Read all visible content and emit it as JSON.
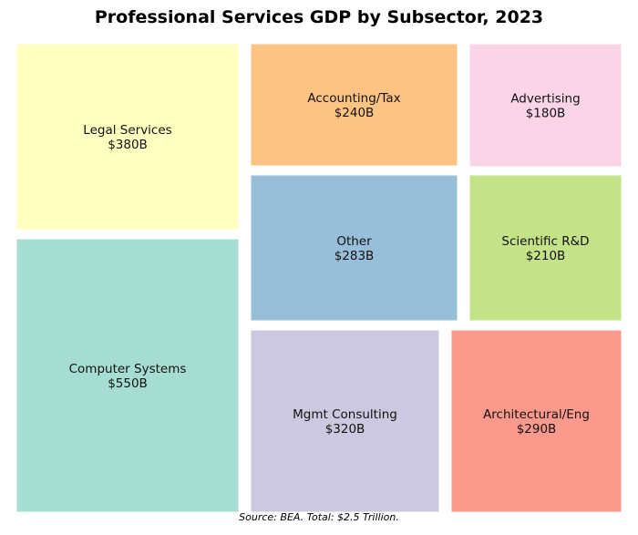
{
  "chart_data": {
    "type": "treemap",
    "title": "Professional Services GDP by Subsector, 2023",
    "source": "Source: BEA. Total: $2.5 Trillion.",
    "unit": "B",
    "items": [
      {
        "label": "Legal Services",
        "value": 380,
        "value_label": "$380B",
        "color": "#FFFFC0"
      },
      {
        "label": "Computer Systems",
        "value": 550,
        "value_label": "$550B",
        "color": "#A6DDD3"
      },
      {
        "label": "Accounting/Tax",
        "value": 240,
        "value_label": "$240B",
        "color": "#FDC382"
      },
      {
        "label": "Advertising",
        "value": 180,
        "value_label": "$180B",
        "color": "#FBD5E7"
      },
      {
        "label": "Other",
        "value": 283,
        "value_label": "$283B",
        "color": "#98BFDA"
      },
      {
        "label": "Scientific R&D",
        "value": 210,
        "value_label": "$210B",
        "color": "#C4E389"
      },
      {
        "label": "Mgmt Consulting",
        "value": 320,
        "value_label": "$320B",
        "color": "#CCC8E0"
      },
      {
        "label": "Architectural/Eng",
        "value": 290,
        "value_label": "$290B",
        "color": "#FB9A8C"
      }
    ]
  }
}
